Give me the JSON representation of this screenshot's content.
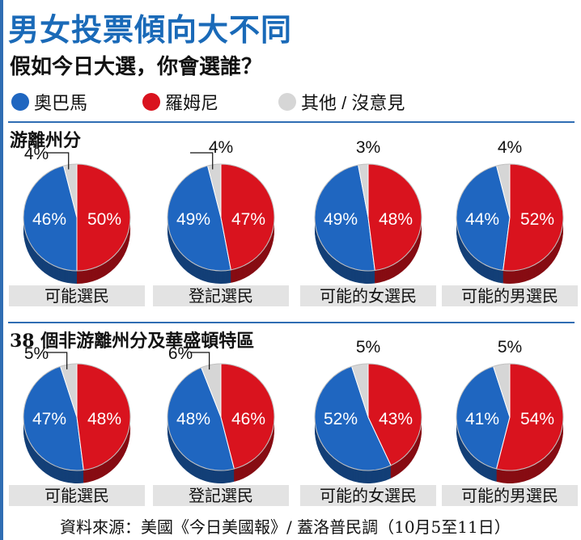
{
  "title": "男女投票傾向大不同",
  "question": "假如今日大選，你會選誰？",
  "legend": [
    {
      "label": "奧巴馬",
      "color": "#1f66c0"
    },
    {
      "label": "羅姆尼",
      "color": "#d9131e"
    },
    {
      "label": "其他 / 沒意見",
      "color": "#d6d6d6"
    }
  ],
  "sections": [
    {
      "title": "游離州分"
    },
    {
      "title": "38 個非游離州分及華盛頓特區"
    }
  ],
  "chart_data": [
    {
      "type": "pie",
      "title": "可能選民",
      "section": "游離州分",
      "slices": [
        {
          "name": "奧巴馬",
          "value": 46
        },
        {
          "name": "羅姆尼",
          "value": 50
        },
        {
          "name": "其他 / 沒意見",
          "value": 4
        }
      ]
    },
    {
      "type": "pie",
      "title": "登記選民",
      "section": "游離州分",
      "slices": [
        {
          "name": "奧巴馬",
          "value": 49
        },
        {
          "name": "羅姆尼",
          "value": 47
        },
        {
          "name": "其他 / 沒意見",
          "value": 4
        }
      ]
    },
    {
      "type": "pie",
      "title": "可能的女選民",
      "section": "游離州分",
      "slices": [
        {
          "name": "奧巴馬",
          "value": 49
        },
        {
          "name": "羅姆尼",
          "value": 48
        },
        {
          "name": "其他 / 沒意見",
          "value": 3
        }
      ]
    },
    {
      "type": "pie",
      "title": "可能的男選民",
      "section": "游離州分",
      "slices": [
        {
          "name": "奧巴馬",
          "value": 44
        },
        {
          "name": "羅姆尼",
          "value": 52
        },
        {
          "name": "其他 / 沒意見",
          "value": 4
        }
      ]
    },
    {
      "type": "pie",
      "title": "可能選民",
      "section": "38 個非游離州分及華盛頓特區",
      "slices": [
        {
          "name": "奧巴馬",
          "value": 47
        },
        {
          "name": "羅姆尼",
          "value": 48
        },
        {
          "name": "其他 / 沒意見",
          "value": 5
        }
      ]
    },
    {
      "type": "pie",
      "title": "登記選民",
      "section": "38 個非游離州分及華盛頓特區",
      "slices": [
        {
          "name": "奧巴馬",
          "value": 48
        },
        {
          "name": "羅姆尼",
          "value": 46
        },
        {
          "name": "其他 / 沒意見",
          "value": 6
        }
      ]
    },
    {
      "type": "pie",
      "title": "可能的女選民",
      "section": "38 個非游離州分及華盛頓特區",
      "slices": [
        {
          "name": "奧巴馬",
          "value": 52
        },
        {
          "name": "羅姆尼",
          "value": 43
        },
        {
          "name": "其他 / 沒意見",
          "value": 5
        }
      ]
    },
    {
      "type": "pie",
      "title": "可能的男選民",
      "section": "38 個非游離州分及華盛頓特區",
      "slices": [
        {
          "name": "奧巴馬",
          "value": 41
        },
        {
          "name": "羅姆尼",
          "value": 54
        },
        {
          "name": "其他 / 沒意見",
          "value": 5
        }
      ]
    }
  ],
  "source": "資料來源：美國《今日美國報》/ 蓋洛普民調（10月5至11日）"
}
